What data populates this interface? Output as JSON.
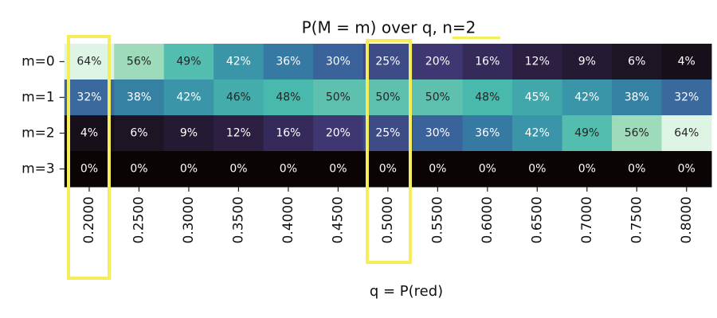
{
  "chart_data": {
    "type": "heatmap",
    "title": "P(M = m) over q, n=2",
    "xlabel": "q = P(red)",
    "colormap": "mako",
    "categories": [
      "0.2000",
      "0.2500",
      "0.3000",
      "0.3500",
      "0.4000",
      "0.4500",
      "0.5000",
      "0.5500",
      "0.6000",
      "0.6500",
      "0.7000",
      "0.7500",
      "0.8000"
    ],
    "rows": [
      "m=0",
      "m=1",
      "m=2",
      "m=3"
    ],
    "values": [
      [
        64,
        56,
        49,
        42,
        36,
        30,
        25,
        20,
        16,
        12,
        9,
        6,
        4
      ],
      [
        32,
        38,
        42,
        46,
        48,
        50,
        50,
        50,
        48,
        45,
        42,
        38,
        32
      ],
      [
        4,
        6,
        9,
        12,
        16,
        20,
        25,
        30,
        36,
        42,
        49,
        56,
        64
      ],
      [
        0,
        0,
        0,
        0,
        0,
        0,
        0,
        0,
        0,
        0,
        0,
        0,
        0
      ]
    ],
    "value_labels": [
      [
        "64%",
        "56%",
        "49%",
        "42%",
        "36%",
        "30%",
        "25%",
        "20%",
        "16%",
        "12%",
        "9%",
        "6%",
        "4%"
      ],
      [
        "32%",
        "38%",
        "42%",
        "46%",
        "48%",
        "50%",
        "50%",
        "50%",
        "48%",
        "45%",
        "42%",
        "38%",
        "32%"
      ],
      [
        "4%",
        "6%",
        "9%",
        "12%",
        "16%",
        "20%",
        "25%",
        "30%",
        "36%",
        "42%",
        "49%",
        "56%",
        "64%"
      ],
      [
        "0%",
        "0%",
        "0%",
        "0%",
        "0%",
        "0%",
        "0%",
        "0%",
        "0%",
        "0%",
        "0%",
        "0%",
        "0%"
      ]
    ]
  }
}
